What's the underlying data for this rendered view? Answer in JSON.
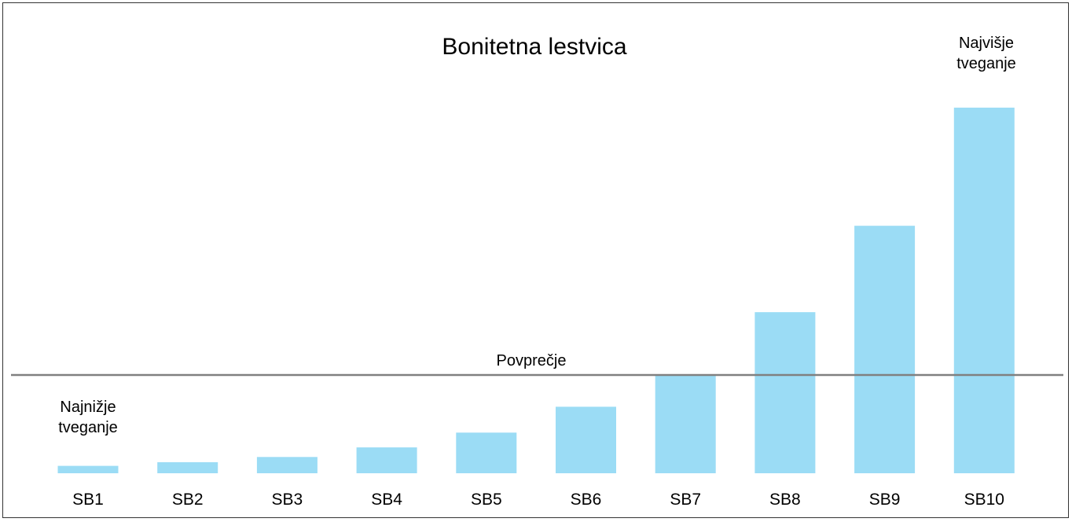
{
  "chart_data": {
    "type": "bar",
    "title": "Bonitetna lestvica",
    "xlabel": "",
    "ylabel": "",
    "categories": [
      "SB1",
      "SB2",
      "SB3",
      "SB4",
      "SB5",
      "SB6",
      "SB7",
      "SB8",
      "SB9",
      "SB10"
    ],
    "values": [
      1.0,
      1.5,
      2.2,
      3.5,
      5.5,
      9.0,
      13.3,
      21.8,
      33.5,
      49.5
    ],
    "ylim": [
      0,
      63
    ],
    "grid": false,
    "legend": "none",
    "reference_line": {
      "label": "Povprečje",
      "value": 13.3
    },
    "annotations": {
      "low": [
        "Najnižje",
        "tveganje"
      ],
      "high": [
        "Najvišje",
        "tveganje"
      ]
    },
    "colors": {
      "bar": "#9bdcf5",
      "reference_line": "#808080",
      "text": "#000000"
    }
  }
}
